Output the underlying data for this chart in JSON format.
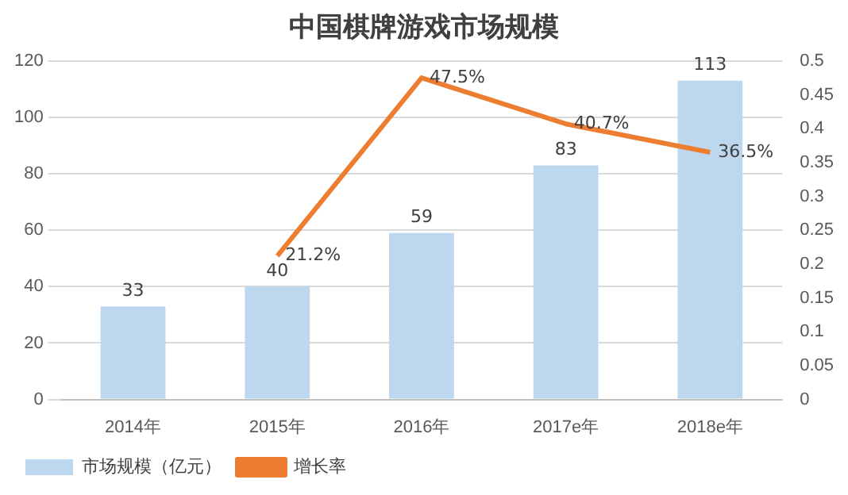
{
  "chart_data": {
    "type": "bar",
    "title": "中国棋牌游戏市场规模",
    "categories": [
      "2014年",
      "2015年",
      "2016年",
      "2017e年",
      "2018e年"
    ],
    "series": [
      {
        "name": "市场规模（亿元）",
        "color": "#bdd7ee",
        "values": [
          33,
          40,
          59,
          83,
          113
        ],
        "value_labels": [
          "33",
          "40",
          "59",
          "83",
          "113"
        ]
      },
      {
        "name": "增长率",
        "type": "line",
        "axis": "y2",
        "color": "#ed7d31",
        "values": [
          null,
          0.212,
          0.475,
          0.407,
          0.365
        ],
        "value_labels": [
          null,
          "21.2%",
          "47.5%",
          "40.7%",
          "36.5%"
        ]
      }
    ],
    "ylim": [
      0,
      120
    ],
    "yticks": [
      0,
      20,
      40,
      60,
      80,
      100,
      120
    ],
    "y2lim": [
      0,
      0.5
    ],
    "y2ticks": [
      0,
      0.05,
      0.1,
      0.15,
      0.2,
      0.25,
      0.3,
      0.35,
      0.4,
      0.45,
      0.5
    ],
    "grid": "y",
    "legend": "bottom",
    "marker": "none",
    "line_style": "solid"
  }
}
